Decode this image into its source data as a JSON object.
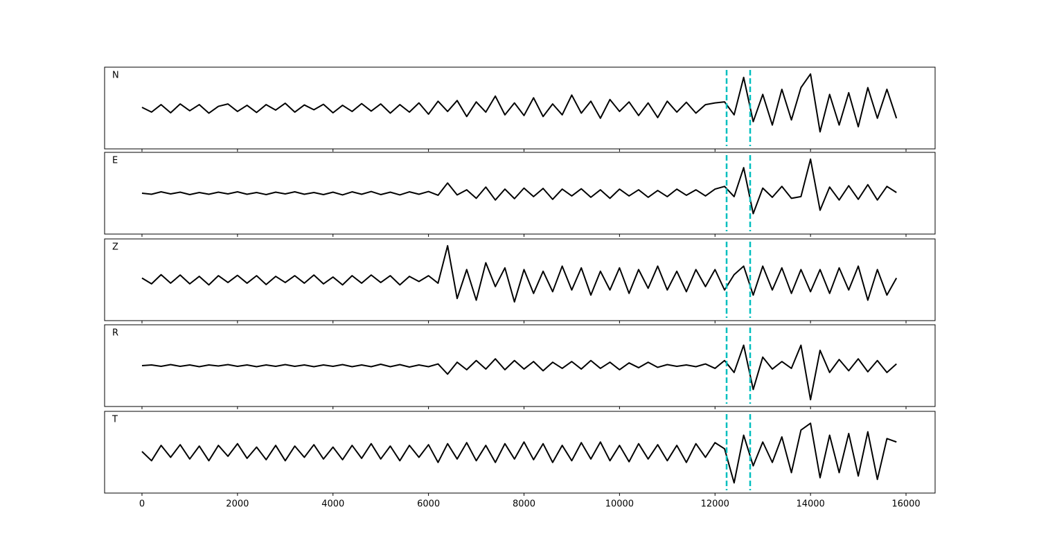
{
  "chart_data": {
    "type": "line",
    "x": [
      0,
      200,
      400,
      600,
      800,
      1000,
      1200,
      1400,
      1600,
      1800,
      2000,
      2200,
      2400,
      2600,
      2800,
      3000,
      3200,
      3400,
      3600,
      3800,
      4000,
      4200,
      4400,
      4600,
      4800,
      5000,
      5200,
      5400,
      5600,
      5800,
      6000,
      6200,
      6400,
      6600,
      6800,
      7000,
      7200,
      7400,
      7600,
      7800,
      8000,
      8200,
      8400,
      8600,
      8800,
      9000,
      9200,
      9400,
      9600,
      9800,
      10000,
      10200,
      10400,
      10600,
      10800,
      11000,
      11200,
      11400,
      11600,
      11800,
      12000,
      12200,
      12400,
      12600,
      12800,
      13000,
      13200,
      13400,
      13600,
      13800,
      14000,
      14200,
      14400,
      14600,
      14800,
      15000,
      15200,
      15400,
      15600,
      15800
    ],
    "series": [
      {
        "name": "N",
        "color": "#000000",
        "values": [
          0.02,
          -0.12,
          0.1,
          -0.14,
          0.12,
          -0.08,
          0.1,
          -0.15,
          0.05,
          0.12,
          -0.1,
          0.08,
          -0.13,
          0.1,
          -0.06,
          0.14,
          -0.12,
          0.09,
          -0.05,
          0.11,
          -0.14,
          0.08,
          -0.1,
          0.13,
          -0.09,
          0.12,
          -0.15,
          0.1,
          -0.12,
          0.15,
          -0.18,
          0.2,
          -0.1,
          0.22,
          -0.25,
          0.18,
          -0.12,
          0.35,
          -0.2,
          0.15,
          -0.22,
          0.3,
          -0.25,
          0.12,
          -0.2,
          0.38,
          -0.15,
          0.2,
          -0.3,
          0.25,
          -0.1,
          0.18,
          -0.22,
          0.15,
          -0.28,
          0.2,
          -0.12,
          0.17,
          -0.15,
          0.1,
          0.15,
          0.18,
          -0.2,
          0.9,
          -0.4,
          0.4,
          -0.5,
          0.55,
          -0.35,
          0.6,
          1.0,
          -0.7,
          0.4,
          -0.5,
          0.45,
          -0.55,
          0.6,
          -0.3,
          0.55,
          -0.3
        ]
      },
      {
        "name": "E",
        "color": "#000000",
        "values": [
          0,
          -0.03,
          0.04,
          -0.02,
          0.03,
          -0.04,
          0.02,
          -0.03,
          0.03,
          -0.02,
          0.04,
          -0.03,
          0.02,
          -0.04,
          0.03,
          -0.02,
          0.04,
          -0.03,
          0.02,
          -0.04,
          0.03,
          -0.05,
          0.04,
          -0.03,
          0.05,
          -0.04,
          0.03,
          -0.05,
          0.04,
          -0.03,
          0.05,
          -0.06,
          0.3,
          -0.05,
          0.1,
          -0.15,
          0.18,
          -0.2,
          0.12,
          -0.16,
          0.15,
          -0.1,
          0.14,
          -0.18,
          0.12,
          -0.08,
          0.13,
          -0.12,
          0.1,
          -0.15,
          0.12,
          -0.08,
          0.1,
          -0.12,
          0.08,
          -0.1,
          0.12,
          -0.06,
          0.1,
          -0.08,
          0.12,
          0.2,
          -0.1,
          0.75,
          -0.6,
          0.15,
          -0.12,
          0.2,
          -0.15,
          -0.1,
          1.0,
          -0.5,
          0.18,
          -0.2,
          0.22,
          -0.18,
          0.25,
          -0.2,
          0.2,
          0.02
        ]
      },
      {
        "name": "Z",
        "color": "#000000",
        "values": [
          0.05,
          -0.12,
          0.15,
          -0.1,
          0.14,
          -0.12,
          0.1,
          -0.15,
          0.12,
          -0.08,
          0.13,
          -0.1,
          0.12,
          -0.14,
          0.1,
          -0.08,
          0.12,
          -0.1,
          0.14,
          -0.12,
          0.08,
          -0.15,
          0.12,
          -0.1,
          0.14,
          -0.08,
          0.12,
          -0.15,
          0.1,
          -0.05,
          0.12,
          -0.1,
          1.0,
          -0.55,
          0.3,
          -0.6,
          0.5,
          -0.2,
          0.35,
          -0.65,
          0.3,
          -0.4,
          0.25,
          -0.35,
          0.4,
          -0.3,
          0.35,
          -0.45,
          0.25,
          -0.3,
          0.35,
          -0.4,
          0.3,
          -0.25,
          0.4,
          -0.3,
          0.25,
          -0.35,
          0.3,
          -0.2,
          0.3,
          -0.3,
          0.15,
          0.4,
          -0.45,
          0.4,
          -0.3,
          0.35,
          -0.4,
          0.3,
          -0.35,
          0.3,
          -0.4,
          0.35,
          -0.3,
          0.4,
          -0.6,
          0.3,
          -0.45,
          0.05
        ]
      },
      {
        "name": "R",
        "color": "#000000",
        "values": [
          0,
          0.02,
          -0.02,
          0.03,
          -0.02,
          0.02,
          -0.03,
          0.02,
          -0.01,
          0.03,
          -0.02,
          0.02,
          -0.03,
          0.02,
          -0.02,
          0.03,
          -0.02,
          0.02,
          -0.03,
          0.02,
          -0.02,
          0.03,
          -0.03,
          0.02,
          -0.03,
          0.04,
          -0.03,
          0.03,
          -0.04,
          0.02,
          -0.03,
          0.05,
          -0.25,
          0.1,
          -0.12,
          0.15,
          -0.1,
          0.2,
          -0.12,
          0.15,
          -0.1,
          0.12,
          -0.15,
          0.1,
          -0.08,
          0.12,
          -0.1,
          0.15,
          -0.08,
          0.1,
          -0.12,
          0.08,
          -0.06,
          0.1,
          -0.05,
          0.03,
          -0.02,
          0.02,
          -0.03,
          0.05,
          -0.08,
          0.15,
          -0.2,
          0.6,
          -0.7,
          0.25,
          -0.1,
          0.12,
          -0.08,
          0.6,
          -1.0,
          0.45,
          -0.2,
          0.18,
          -0.15,
          0.2,
          -0.18,
          0.15,
          -0.2,
          0.05
        ]
      },
      {
        "name": "T",
        "color": "#000000",
        "values": [
          0.02,
          -0.25,
          0.2,
          -0.15,
          0.22,
          -0.2,
          0.18,
          -0.25,
          0.2,
          -0.12,
          0.25,
          -0.18,
          0.15,
          -0.22,
          0.2,
          -0.25,
          0.18,
          -0.15,
          0.22,
          -0.2,
          0.15,
          -0.22,
          0.2,
          -0.18,
          0.25,
          -0.2,
          0.18,
          -0.25,
          0.2,
          -0.15,
          0.22,
          -0.3,
          0.25,
          -0.2,
          0.28,
          -0.25,
          0.2,
          -0.3,
          0.25,
          -0.2,
          0.3,
          -0.22,
          0.25,
          -0.3,
          0.2,
          -0.25,
          0.28,
          -0.2,
          0.3,
          -0.25,
          0.2,
          -0.28,
          0.25,
          -0.2,
          0.22,
          -0.25,
          0.2,
          -0.3,
          0.25,
          -0.15,
          0.28,
          0.1,
          -0.9,
          0.5,
          -0.4,
          0.3,
          -0.3,
          0.45,
          -0.6,
          0.65,
          0.85,
          -0.75,
          0.5,
          -0.6,
          0.55,
          -0.7,
          0.6,
          -0.8,
          0.4,
          0.3
        ]
      }
    ],
    "xlim": [
      -783,
      16609
    ],
    "xticks": [
      0,
      2000,
      4000,
      6000,
      8000,
      10000,
      12000,
      14000,
      16000
    ],
    "ylim": [
      -1.2,
      1.2
    ],
    "markers": [
      12243,
      12736
    ],
    "marker_color": "#00bfbf"
  }
}
